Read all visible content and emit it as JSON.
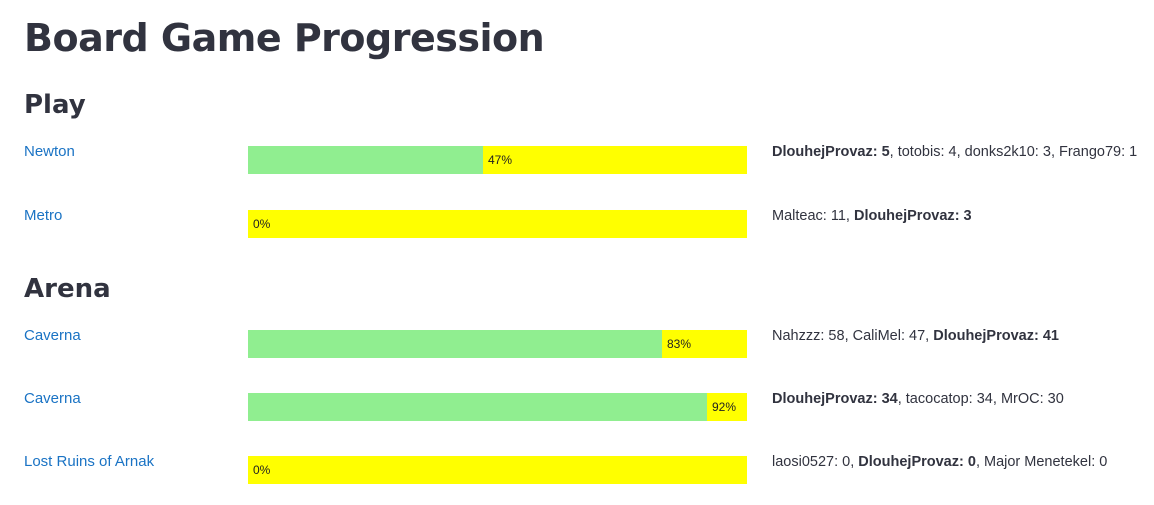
{
  "title": "Board Game Progression",
  "colors": {
    "progress_fill": "#90ee90",
    "progress_remaining": "#ffff00",
    "link": "#1a73c4",
    "text": "#31333f"
  },
  "sections": [
    {
      "heading": "Play",
      "games": [
        {
          "name": "Newton",
          "progress": 47,
          "progress_label": "47%",
          "scores": [
            {
              "player": "DlouhejProvaz",
              "score": "5",
              "highlight": true
            },
            {
              "player": "totobis",
              "score": "4",
              "highlight": false
            },
            {
              "player": "donks2k10",
              "score": "3",
              "highlight": false
            },
            {
              "player": "Frango79",
              "score": "1",
              "highlight": false
            }
          ]
        },
        {
          "name": "Metro",
          "progress": 0,
          "progress_label": "0%",
          "scores": [
            {
              "player": "Malteac",
              "score": "11",
              "highlight": false
            },
            {
              "player": "DlouhejProvaz",
              "score": "3",
              "highlight": true
            }
          ]
        }
      ]
    },
    {
      "heading": "Arena",
      "games": [
        {
          "name": "Caverna",
          "progress": 83,
          "progress_label": "83%",
          "scores": [
            {
              "player": "Nahzzz",
              "score": "58",
              "highlight": false
            },
            {
              "player": "CaliMel",
              "score": "47",
              "highlight": false
            },
            {
              "player": "DlouhejProvaz",
              "score": "41",
              "highlight": true
            }
          ]
        },
        {
          "name": "Caverna",
          "progress": 92,
          "progress_label": "92%",
          "scores": [
            {
              "player": "DlouhejProvaz",
              "score": "34",
              "highlight": true
            },
            {
              "player": "tacocatop",
              "score": "34",
              "highlight": false
            },
            {
              "player": "MrOC",
              "score": "30",
              "highlight": false
            }
          ]
        },
        {
          "name": "Lost Ruins of Arnak",
          "progress": 0,
          "progress_label": "0%",
          "scores": [
            {
              "player": "laosi0527",
              "score": "0",
              "highlight": false
            },
            {
              "player": "DlouhejProvaz",
              "score": "0",
              "highlight": true
            },
            {
              "player": "Major Menetekel",
              "score": "0",
              "highlight": false
            }
          ]
        }
      ]
    }
  ]
}
